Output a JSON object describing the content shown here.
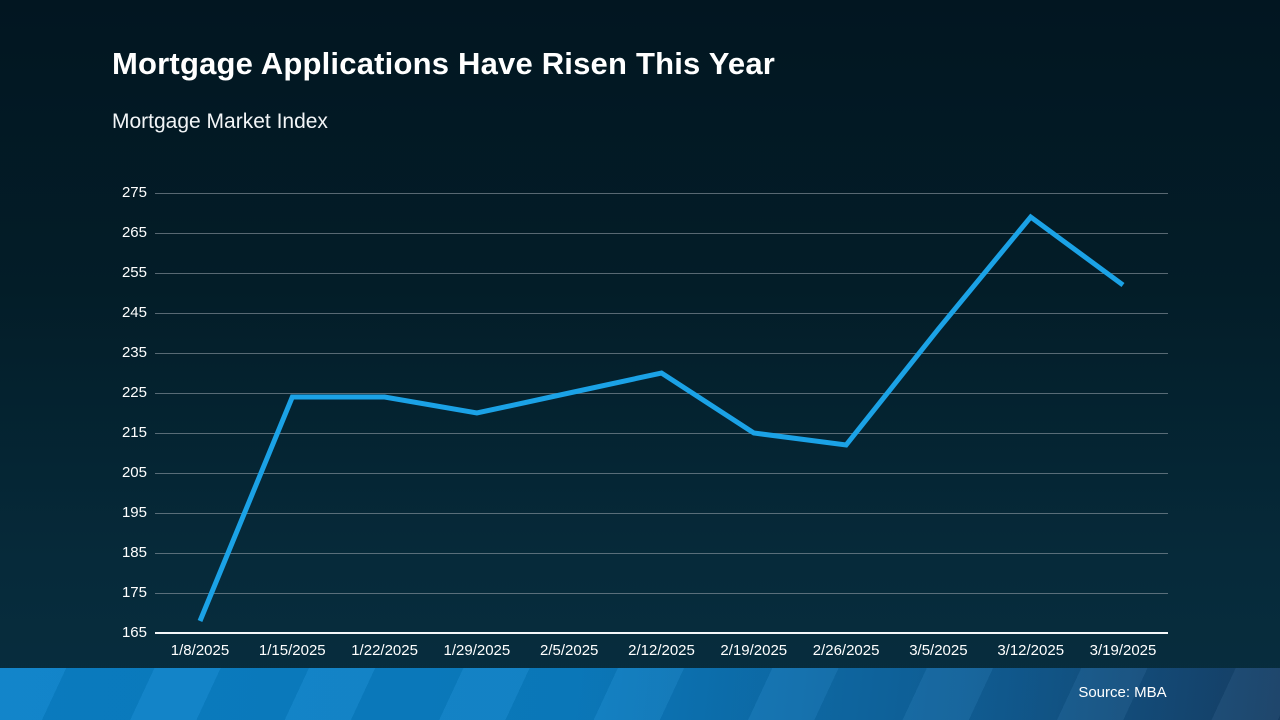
{
  "slide": {
    "title": "Mortgage Applications Have Risen This Year",
    "subtitle": "Mortgage Market Index",
    "source": "Source: MBA"
  },
  "colors": {
    "background_top": "#021621",
    "background_bottom": "#082e3f",
    "line": "#1ba2e6",
    "gridline": "#9ea8b0",
    "axis_line": "#f4f7f9",
    "text": "#ffffff",
    "footer_left": "#0a81c8",
    "footer_right": "#173f66"
  },
  "chart_data": {
    "type": "line",
    "title": "Mortgage Applications Have Risen This Year",
    "subtitle": "Mortgage Market Index",
    "x": [
      "1/8/2025",
      "1/15/2025",
      "1/22/2025",
      "1/29/2025",
      "2/5/2025",
      "2/12/2025",
      "2/19/2025",
      "2/26/2025",
      "3/5/2025",
      "3/12/2025",
      "3/19/2025"
    ],
    "series": [
      {
        "name": "Mortgage Market Index",
        "values": [
          168,
          224,
          224,
          220,
          225,
          230,
          215,
          212,
          241,
          269,
          252
        ]
      }
    ],
    "xlabel": "",
    "ylabel": "",
    "ylim": [
      165,
      275
    ],
    "y_ticks": [
      165,
      175,
      185,
      195,
      205,
      215,
      225,
      235,
      245,
      255,
      265,
      275
    ],
    "grid": "horizontal",
    "legend": "none",
    "source": "Source: MBA"
  }
}
